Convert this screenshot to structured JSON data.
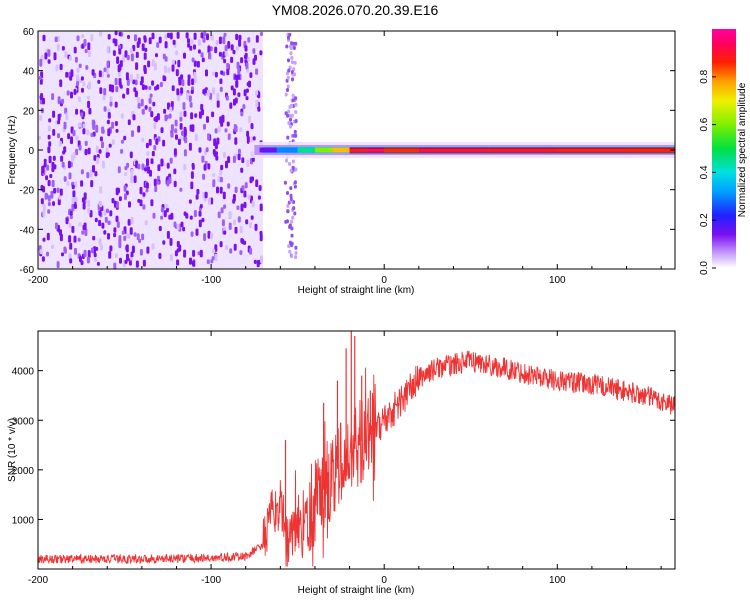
{
  "figure": {
    "title": "YM08.2026.070.20.39.E16"
  },
  "chart_data": [
    {
      "type": "heatmap",
      "name": "spectrogram",
      "xlabel": "Height of straight line (km)",
      "ylabel": "Frequency (Hz)",
      "xlim": [
        -200,
        168
      ],
      "ylim": [
        -60,
        60
      ],
      "xticks": [
        -200,
        -100,
        0,
        100
      ],
      "yticks": [
        60,
        40,
        20,
        0,
        -20,
        -40,
        -60
      ],
      "noise_region_km": [
        -200,
        -70
      ],
      "gap_km": [
        -70,
        -58
      ],
      "noise_strip_km": [
        -58,
        -50
      ],
      "line": {
        "frequency_hz": 0,
        "points": [
          {
            "x": -72,
            "amp": 0.15
          },
          {
            "x": -62,
            "amp": 0.3
          },
          {
            "x": -50,
            "amp": 0.45
          },
          {
            "x": -40,
            "amp": 0.6
          },
          {
            "x": -30,
            "amp": 0.75
          },
          {
            "x": -20,
            "amp": 0.9
          },
          {
            "x": -10,
            "amp": 0.95
          },
          {
            "x": 0,
            "amp": 0.85
          },
          {
            "x": 20,
            "amp": 0.92
          },
          {
            "x": 60,
            "amp": 0.9
          },
          {
            "x": 100,
            "amp": 0.88
          },
          {
            "x": 140,
            "amp": 0.86
          },
          {
            "x": 168,
            "amp": 0.84
          }
        ]
      },
      "colorbar": {
        "label": "Normalized spectral amplitude",
        "ticks": [
          "0.0",
          "0.2",
          "0.4",
          "0.6",
          "0.8"
        ],
        "tick_values": [
          0.0,
          0.2,
          0.4,
          0.6,
          0.8
        ],
        "range": [
          0,
          1
        ]
      }
    },
    {
      "type": "line",
      "name": "snr",
      "xlabel": "Height of straight line (km)",
      "ylabel": "SNR (10 * v/v)",
      "xlim": [
        -200,
        168
      ],
      "ylim": [
        0,
        4800
      ],
      "xticks": [
        -200,
        -100,
        0,
        100
      ],
      "yticks": [
        1000,
        2000,
        3000,
        4000
      ],
      "color": "#ee3333",
      "series": [
        {
          "name": "SNR",
          "x": [
            -200,
            -150,
            -100,
            -80,
            -70,
            -65,
            -60,
            -55,
            -50,
            -40,
            -30,
            -20,
            -10,
            0,
            10,
            20,
            30,
            50,
            75,
            100,
            125,
            150,
            168
          ],
          "y": [
            200,
            200,
            220,
            250,
            500,
            1100,
            1300,
            500,
            900,
            1300,
            1900,
            2300,
            2700,
            3000,
            3400,
            3850,
            4050,
            4200,
            4000,
            3800,
            3700,
            3500,
            3300
          ]
        }
      ],
      "spikes": [
        {
          "x": -57,
          "y": 2600
        },
        {
          "x": -35,
          "y": 3350
        },
        {
          "x": -27,
          "y": 3800
        },
        {
          "x": -22,
          "y": 4450
        },
        {
          "x": -19,
          "y": 4800
        },
        {
          "x": -17,
          "y": 4700
        },
        {
          "x": -13,
          "y": 3900
        },
        {
          "x": -8,
          "y": 3600
        }
      ]
    }
  ]
}
